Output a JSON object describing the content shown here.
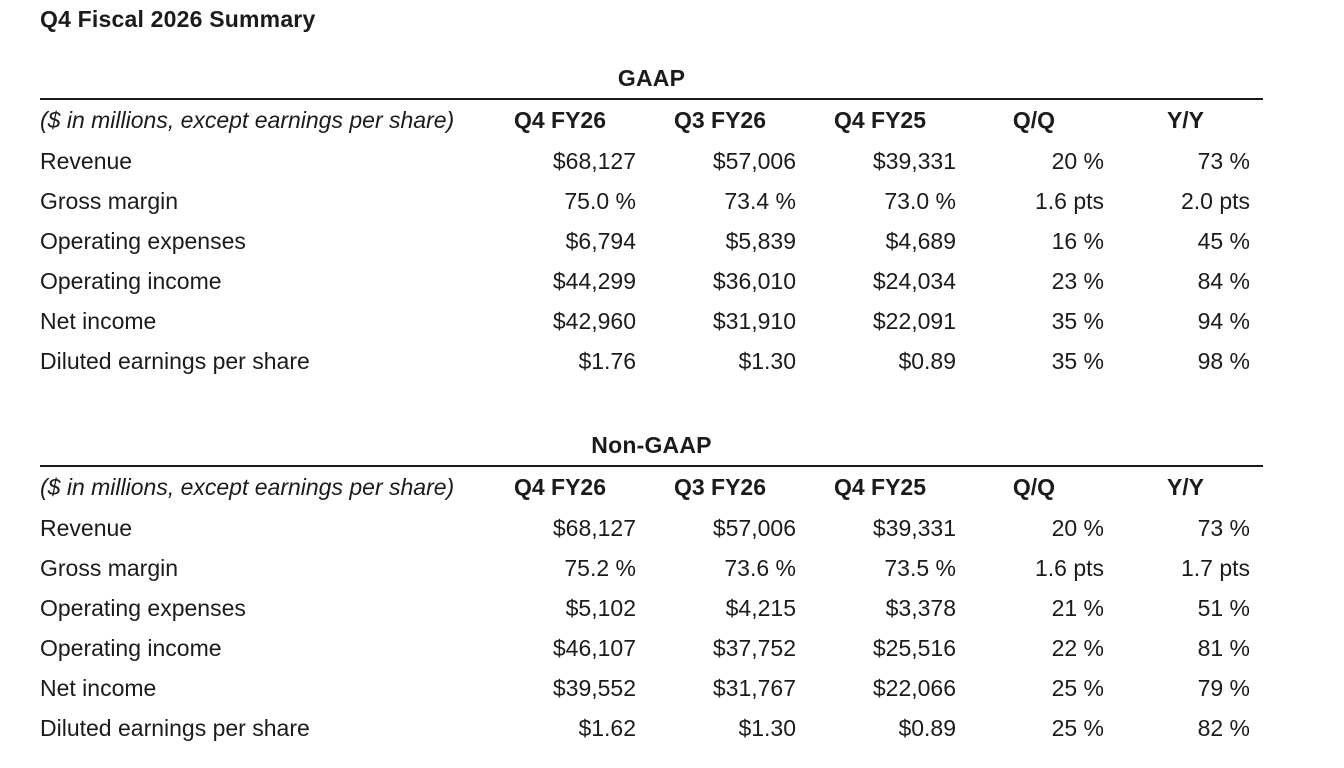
{
  "page_title": "Q4 Fiscal 2026 Summary",
  "colors": {
    "background": "#ffffff",
    "text": "#1b1b1b",
    "rule": "#1b1b1b"
  },
  "tables": [
    {
      "title": "GAAP",
      "units_note": "($ in millions, except earnings per share)",
      "columns": [
        "Q4 FY26",
        "Q3 FY26",
        "Q4 FY25",
        "Q/Q",
        "Y/Y"
      ],
      "rows": [
        {
          "label": "Revenue",
          "values": [
            "$68,127",
            "$57,006",
            "$39,331",
            "20 %",
            "73 %"
          ]
        },
        {
          "label": "Gross margin",
          "values": [
            "75.0 %",
            "73.4 %",
            "73.0 %",
            "1.6 pts",
            "2.0 pts"
          ]
        },
        {
          "label": "Operating expenses",
          "values": [
            "$6,794",
            "$5,839",
            "$4,689",
            "16 %",
            "45 %"
          ]
        },
        {
          "label": "Operating income",
          "values": [
            "$44,299",
            "$36,010",
            "$24,034",
            "23 %",
            "84 %"
          ]
        },
        {
          "label": "Net income",
          "values": [
            "$42,960",
            "$31,910",
            "$22,091",
            "35 %",
            "94 %"
          ]
        },
        {
          "label": "Diluted earnings per share",
          "values": [
            "$1.76",
            "$1.30",
            "$0.89",
            "35 %",
            "98 %"
          ]
        }
      ]
    },
    {
      "title": "Non-GAAP",
      "units_note": "($ in millions, except earnings per share)",
      "columns": [
        "Q4 FY26",
        "Q3 FY26",
        "Q4 FY25",
        "Q/Q",
        "Y/Y"
      ],
      "rows": [
        {
          "label": "Revenue",
          "values": [
            "$68,127",
            "$57,006",
            "$39,331",
            "20 %",
            "73 %"
          ]
        },
        {
          "label": "Gross margin",
          "values": [
            "75.2 %",
            "73.6 %",
            "73.5 %",
            "1.6 pts",
            "1.7 pts"
          ]
        },
        {
          "label": "Operating expenses",
          "values": [
            "$5,102",
            "$4,215",
            "$3,378",
            "21 %",
            "51 %"
          ]
        },
        {
          "label": "Operating income",
          "values": [
            "$46,107",
            "$37,752",
            "$25,516",
            "22 %",
            "81 %"
          ]
        },
        {
          "label": "Net income",
          "values": [
            "$39,552",
            "$31,767",
            "$22,066",
            "25 %",
            "79 %"
          ]
        },
        {
          "label": "Diluted earnings per share",
          "values": [
            "$1.62",
            "$1.30",
            "$0.89",
            "25 %",
            "82 %"
          ]
        }
      ]
    }
  ]
}
